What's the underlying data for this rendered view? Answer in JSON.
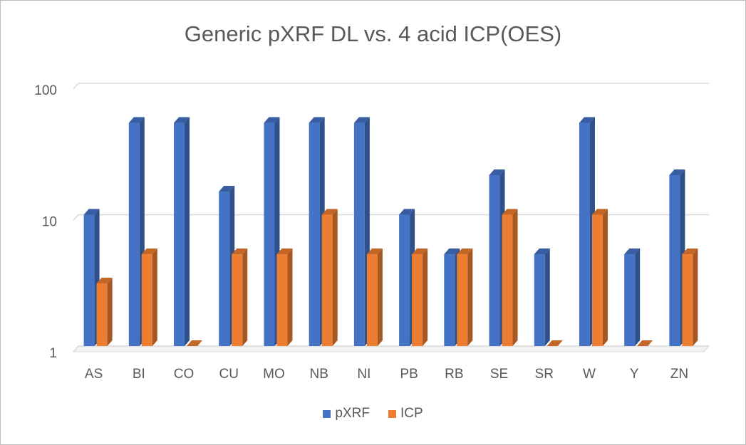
{
  "chart_data": {
    "type": "bar",
    "title": "Generic pXRF DL vs. 4 acid ICP(OES)",
    "categories": [
      "AS",
      "BI",
      "CO",
      "CU",
      "MO",
      "NB",
      "NI",
      "PB",
      "RB",
      "SE",
      "SR",
      "W",
      "Y",
      "ZN"
    ],
    "series": [
      {
        "name": "pXRF",
        "color": "#4472C4",
        "values": [
          10,
          50,
          50,
          15,
          50,
          50,
          50,
          10,
          5,
          20,
          5,
          50,
          5,
          20
        ]
      },
      {
        "name": "ICP",
        "color": "#ED7D31",
        "values": [
          3,
          5,
          1,
          5,
          5,
          10,
          5,
          5,
          5,
          10,
          1,
          10,
          1,
          5
        ]
      }
    ],
    "y_scale": "log",
    "ylim": [
      1,
      100
    ],
    "y_ticks": [
      "1",
      "10",
      "100"
    ],
    "grid": true,
    "legend": "bottom",
    "style": "3d-clustered-column"
  }
}
